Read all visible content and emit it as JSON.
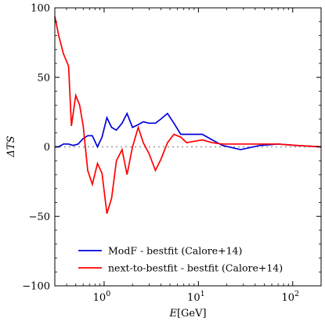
{
  "chart_data": {
    "type": "line",
    "title": "",
    "xlabel": "E",
    "xlabel_unit": "[GeV]",
    "ylabel": "ΔTS",
    "xscale": "log",
    "xlim": [
      0.3,
      200
    ],
    "ylim": [
      -100,
      100
    ],
    "x_ticks": [
      {
        "value": 1,
        "base": "10",
        "exp": "0"
      },
      {
        "value": 10,
        "base": "10",
        "exp": "1"
      },
      {
        "value": 100,
        "base": "10",
        "exp": "2"
      }
    ],
    "y_ticks": [
      {
        "value": 100,
        "label": "100"
      },
      {
        "value": 50,
        "label": "50"
      },
      {
        "value": 0,
        "label": "0"
      },
      {
        "value": -50,
        "label": "−50"
      },
      {
        "value": -100,
        "label": "−100"
      }
    ],
    "reference_line": {
      "y": 0,
      "style": "dotted",
      "color": "#999999"
    },
    "legend_position": "lower-center",
    "series": [
      {
        "name": "ModF - bestfit (Calore+14)",
        "color": "#0000dd",
        "x": [
          0.3,
          0.33,
          0.37,
          0.42,
          0.47,
          0.53,
          0.6,
          0.67,
          0.75,
          0.85,
          0.95,
          1.07,
          1.2,
          1.35,
          1.55,
          1.75,
          2.0,
          2.3,
          2.6,
          3.0,
          3.5,
          4.0,
          4.7,
          5.5,
          6.5,
          7.5,
          9.0,
          11.0,
          14.0,
          18.0,
          28.0,
          45.0,
          70.0,
          110.0,
          200.0
        ],
        "y": [
          0,
          0,
          2,
          2,
          1,
          2,
          6,
          8,
          8,
          0,
          7,
          21,
          14,
          12,
          17,
          24,
          14,
          16,
          18,
          17,
          17,
          20,
          24,
          17,
          9,
          9,
          9,
          9,
          5,
          1,
          -2,
          1,
          2,
          1,
          0
        ]
      },
      {
        "name": "next-to-bestfit - bestfit (Calore+14)",
        "color": "#ff0000",
        "x": [
          0.3,
          0.33,
          0.37,
          0.42,
          0.45,
          0.5,
          0.55,
          0.6,
          0.67,
          0.75,
          0.85,
          0.95,
          1.07,
          1.2,
          1.35,
          1.55,
          1.75,
          2.0,
          2.3,
          2.6,
          3.0,
          3.5,
          4.0,
          4.7,
          5.5,
          6.5,
          7.5,
          9.0,
          11.0,
          14.0,
          18.0,
          28.0,
          45.0,
          70.0,
          110.0,
          200.0
        ],
        "y": [
          94,
          80,
          67,
          58,
          15,
          37,
          30,
          15,
          -17,
          -27,
          -12,
          -19,
          -48,
          -37,
          -10,
          -2,
          -20,
          0,
          14,
          3,
          -5,
          -17,
          -9,
          3,
          9,
          7,
          3,
          4,
          5,
          3,
          2,
          2,
          2,
          2,
          1,
          0
        ]
      }
    ]
  }
}
